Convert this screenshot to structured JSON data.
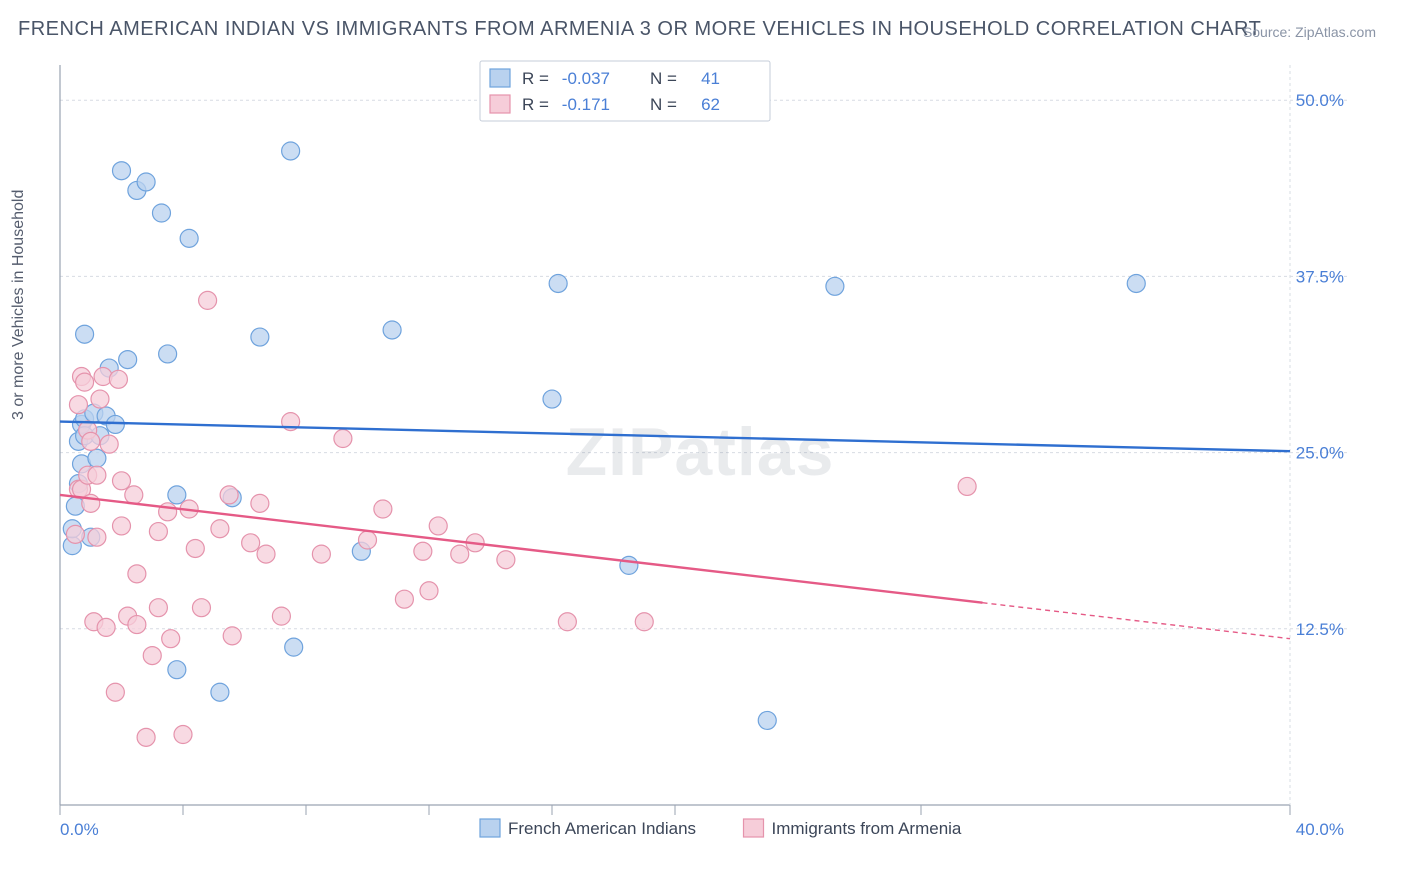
{
  "title": "FRENCH AMERICAN INDIAN VS IMMIGRANTS FROM ARMENIA 3 OR MORE VEHICLES IN HOUSEHOLD CORRELATION CHART",
  "source": "Source: ZipAtlas.com",
  "ylabel": "3 or more Vehicles in Household",
  "watermark": "ZIPatlas",
  "chart": {
    "type": "scatter-with-regression",
    "background_color": "#ffffff",
    "grid_color": "#d7dce3",
    "axis_color": "#9aa3b2",
    "tick_label_color": "#4a7fd6",
    "xlim": [
      0,
      40
    ],
    "ylim": [
      0,
      52.5
    ],
    "xtick_positions": [
      0,
      4,
      8,
      12,
      16,
      20,
      28,
      40
    ],
    "xtick_labels": {
      "0": "0.0%",
      "40": "40.0%"
    },
    "ygrid_positions": [
      12.5,
      25.0,
      37.5,
      50.0
    ],
    "ytick_labels": [
      "12.5%",
      "25.0%",
      "37.5%",
      "50.0%"
    ],
    "marker_radius": 9,
    "marker_stroke_width": 1.2,
    "line_width": 2.4,
    "dash_pattern": "5 4",
    "series": [
      {
        "name": "French American Indians",
        "fill_color": "#b9d2ef",
        "stroke_color": "#6fa3dd",
        "line_color": "#2f6fd0",
        "R": "-0.037",
        "N": "41",
        "points": [
          [
            0.4,
            18.4
          ],
          [
            0.4,
            19.6
          ],
          [
            0.5,
            21.2
          ],
          [
            0.6,
            22.8
          ],
          [
            0.6,
            25.8
          ],
          [
            0.7,
            27.0
          ],
          [
            0.7,
            24.2
          ],
          [
            0.8,
            27.4
          ],
          [
            0.8,
            33.4
          ],
          [
            0.8,
            26.2
          ],
          [
            1.0,
            19.0
          ],
          [
            1.1,
            27.8
          ],
          [
            1.2,
            24.6
          ],
          [
            1.3,
            26.2
          ],
          [
            1.5,
            27.6
          ],
          [
            1.6,
            31.0
          ],
          [
            1.8,
            27.0
          ],
          [
            2.0,
            45.0
          ],
          [
            2.2,
            31.6
          ],
          [
            2.5,
            43.6
          ],
          [
            2.8,
            44.2
          ],
          [
            3.3,
            42.0
          ],
          [
            3.5,
            32.0
          ],
          [
            3.8,
            22.0
          ],
          [
            3.8,
            9.6
          ],
          [
            4.2,
            40.2
          ],
          [
            5.2,
            8.0
          ],
          [
            5.6,
            21.8
          ],
          [
            6.5,
            33.2
          ],
          [
            7.5,
            46.4
          ],
          [
            7.6,
            11.2
          ],
          [
            9.8,
            18.0
          ],
          [
            10.8,
            33.7
          ],
          [
            16.0,
            28.8
          ],
          [
            16.2,
            37.0
          ],
          [
            18.5,
            17.0
          ],
          [
            23.0,
            6.0
          ],
          [
            25.2,
            36.8
          ],
          [
            35.0,
            37.0
          ]
        ],
        "reg_y_at_xmin": 27.2,
        "reg_y_at_xmax": 25.1,
        "reg_solid_xmax": 40
      },
      {
        "name": "Immigrants from Armenia",
        "fill_color": "#f6cdd9",
        "stroke_color": "#e593ac",
        "line_color": "#e55a86",
        "R": "-0.171",
        "N": "62",
        "points": [
          [
            0.5,
            19.2
          ],
          [
            0.6,
            22.4
          ],
          [
            0.6,
            28.4
          ],
          [
            0.7,
            30.4
          ],
          [
            0.7,
            22.4
          ],
          [
            0.8,
            30.0
          ],
          [
            0.9,
            26.6
          ],
          [
            0.9,
            23.4
          ],
          [
            1.0,
            21.4
          ],
          [
            1.0,
            25.8
          ],
          [
            1.1,
            13.0
          ],
          [
            1.2,
            23.4
          ],
          [
            1.2,
            19.0
          ],
          [
            1.3,
            28.8
          ],
          [
            1.4,
            30.4
          ],
          [
            1.5,
            12.6
          ],
          [
            1.6,
            25.6
          ],
          [
            1.8,
            8.0
          ],
          [
            1.9,
            30.2
          ],
          [
            2.0,
            23.0
          ],
          [
            2.0,
            19.8
          ],
          [
            2.2,
            13.4
          ],
          [
            2.4,
            22.0
          ],
          [
            2.5,
            16.4
          ],
          [
            2.5,
            12.8
          ],
          [
            2.8,
            4.8
          ],
          [
            3.0,
            10.6
          ],
          [
            3.2,
            19.4
          ],
          [
            3.2,
            14.0
          ],
          [
            3.5,
            20.8
          ],
          [
            3.6,
            11.8
          ],
          [
            4.0,
            5.0
          ],
          [
            4.2,
            21.0
          ],
          [
            4.4,
            18.2
          ],
          [
            4.6,
            14.0
          ],
          [
            4.8,
            35.8
          ],
          [
            5.2,
            19.6
          ],
          [
            5.5,
            22.0
          ],
          [
            5.6,
            12.0
          ],
          [
            6.2,
            18.6
          ],
          [
            6.5,
            21.4
          ],
          [
            6.7,
            17.8
          ],
          [
            7.2,
            13.4
          ],
          [
            7.5,
            27.2
          ],
          [
            8.5,
            17.8
          ],
          [
            9.2,
            26.0
          ],
          [
            10.0,
            18.8
          ],
          [
            10.5,
            21.0
          ],
          [
            11.2,
            14.6
          ],
          [
            11.8,
            18.0
          ],
          [
            12.0,
            15.2
          ],
          [
            12.3,
            19.8
          ],
          [
            13.0,
            17.8
          ],
          [
            13.5,
            18.6
          ],
          [
            14.5,
            17.4
          ],
          [
            16.5,
            13.0
          ],
          [
            19.0,
            13.0
          ],
          [
            29.5,
            22.6
          ]
        ],
        "reg_y_at_xmin": 22.0,
        "reg_y_at_xmax": 11.8,
        "reg_solid_xmax": 30
      }
    ],
    "legend_top": {
      "bg": "#ffffff",
      "border": "#c5cdd9",
      "text_color": "#3c4658",
      "value_color": "#4a7fd6"
    }
  }
}
